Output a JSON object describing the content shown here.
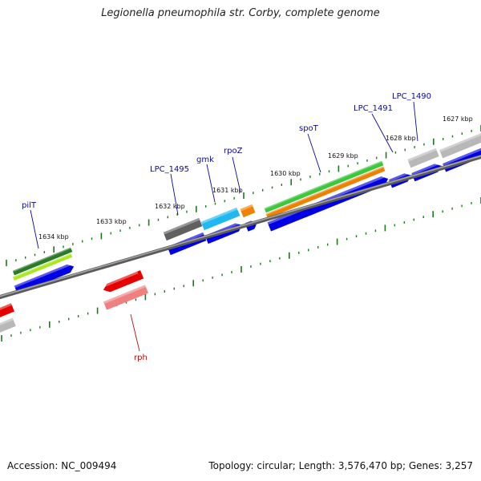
{
  "title": "Legionella pneumophila str. Corby, complete genome",
  "footer": {
    "accession": "Accession: NC_009494",
    "summary": "Topology: circular; Length: 3,576,470 bp; Genes: 3,257"
  },
  "colors": {
    "backbone": "#808080",
    "tick": "#1a7a1a",
    "gene_label_forward": "#0a0a9a",
    "gene_label_reverse": "#b01010",
    "cds_blue": "#0000e6",
    "green_dark": "#2a7a2a",
    "green_light": "#a8e820",
    "green": "#3cc83c",
    "orange": "#f08000",
    "cyan": "#20b8f0",
    "gray_dark": "#606060",
    "gray_light": "#b8b8b8",
    "red": "#e60000",
    "pink": "#f08080"
  },
  "kbp_ticks": [
    {
      "label": "1634 kbp"
    },
    {
      "label": "1633 kbp"
    },
    {
      "label": "1632 kbp"
    },
    {
      "label": "1631 kbp"
    },
    {
      "label": "1630 kbp"
    },
    {
      "label": "1629 kbp"
    },
    {
      "label": "1628 kbp"
    },
    {
      "label": "1627 kbp"
    }
  ],
  "gene_labels": [
    {
      "name": "pilT"
    },
    {
      "name": "LPC_1495"
    },
    {
      "name": "gmk"
    },
    {
      "name": "rpoZ"
    },
    {
      "name": "spoT"
    },
    {
      "name": "LPC_1491"
    },
    {
      "name": "LPC_1490"
    },
    {
      "name": "rph"
    }
  ]
}
